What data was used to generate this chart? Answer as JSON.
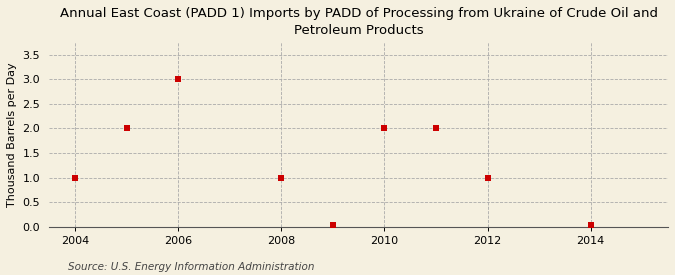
{
  "title": "Annual East Coast (PADD 1) Imports by PADD of Processing from Ukraine of Crude Oil and\nPetroleum Products",
  "ylabel": "Thousand Barrels per Day",
  "source": "Source: U.S. Energy Information Administration",
  "background_color": "#f5f0e0",
  "years": [
    2004,
    2005,
    2006,
    2008,
    2009,
    2010,
    2011,
    2012,
    2014
  ],
  "values": [
    1.0,
    2.0,
    3.0,
    1.0,
    0.04,
    2.0,
    2.0,
    1.0,
    0.04
  ],
  "xlim": [
    2003.5,
    2015.5
  ],
  "ylim": [
    0.0,
    3.75
  ],
  "yticks": [
    0.0,
    0.5,
    1.0,
    1.5,
    2.0,
    2.5,
    3.0,
    3.5
  ],
  "xticks": [
    2004,
    2006,
    2008,
    2010,
    2012,
    2014
  ],
  "marker_color": "#cc0000",
  "marker_size": 4,
  "grid_color": "#aaaaaa",
  "title_fontsize": 9.5,
  "axis_label_fontsize": 8,
  "tick_fontsize": 8,
  "source_fontsize": 7.5
}
